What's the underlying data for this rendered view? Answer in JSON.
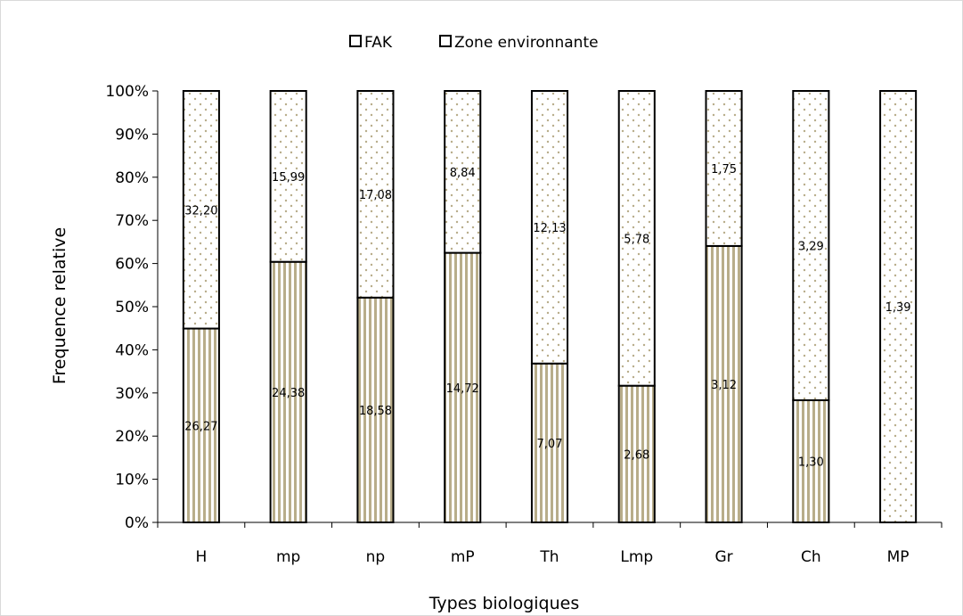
{
  "chart_data": {
    "type": "bar",
    "stacked": "percent",
    "categories": [
      "H",
      "mp",
      "np",
      "mP",
      "Th",
      "Lmp",
      "Gr",
      "Ch",
      "MP"
    ],
    "series": [
      {
        "name": "FAK",
        "pattern": "vertical-stripes",
        "color": "#b8ad8a",
        "values": [
          26.27,
          24.38,
          18.58,
          14.72,
          7.07,
          2.68,
          3.12,
          1.3,
          0
        ],
        "labels": [
          "26,27",
          "24,38",
          "18,58",
          "14,72",
          "7,07",
          "2,68",
          "3,12",
          "1,30",
          ""
        ]
      },
      {
        "name": "Zone environnante",
        "pattern": "dots",
        "color": "#b8ad8a",
        "values": [
          32.2,
          15.99,
          17.08,
          8.84,
          12.13,
          5.78,
          1.75,
          3.29,
          1.39
        ],
        "labels": [
          "32,20",
          "15,99",
          "17,08",
          "8,84",
          "12,13",
          "5,78",
          "1,75",
          "3,29",
          "1,39"
        ]
      }
    ],
    "xlabel": "Types biologiques",
    "ylabel": "Frequence relative",
    "ylim": [
      0,
      100
    ],
    "yticks": [
      "0%",
      "10%",
      "20%",
      "30%",
      "40%",
      "50%",
      "60%",
      "70%",
      "80%",
      "90%",
      "100%"
    ],
    "legend_position": "top-center",
    "grid": false
  }
}
